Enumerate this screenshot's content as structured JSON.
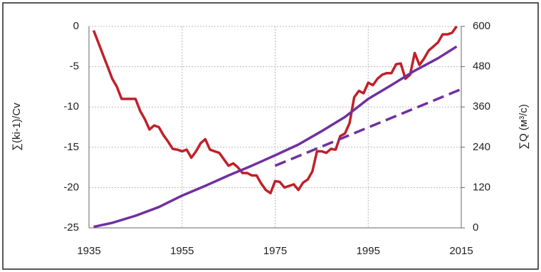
{
  "chart_data": {
    "type": "line",
    "xlim": [
      1935,
      2015
    ],
    "xticks": [
      1935,
      1955,
      1975,
      1995,
      2015
    ],
    "ylim": [
      -25,
      0
    ],
    "yticks": [
      -25,
      -20,
      -15,
      -10,
      -5,
      0
    ],
    "y2lim": [
      0,
      600
    ],
    "y2ticks": [
      0,
      120,
      240,
      360,
      480,
      600
    ],
    "ylabel": "∑(ki-1)/Cv",
    "y2label": "∑Q (м³/c)",
    "grid": true,
    "series": [
      {
        "color": "#c0202a",
        "dashed": false,
        "x": [
          1936,
          1937,
          1938,
          1939,
          1940,
          1941,
          1942,
          1943,
          1944,
          1945,
          1946,
          1947,
          1948,
          1949,
          1950,
          1951,
          1952,
          1953,
          1954,
          1955,
          1956,
          1957,
          1958,
          1959,
          1960,
          1961,
          1962,
          1963,
          1964,
          1965,
          1966,
          1967,
          1968,
          1969,
          1970,
          1971,
          1972,
          1973,
          1974,
          1975,
          1976,
          1977,
          1978,
          1979,
          1980,
          1981,
          1982,
          1983,
          1984,
          1985,
          1986,
          1987,
          1988,
          1989,
          1990,
          1991,
          1992,
          1993,
          1994,
          1995,
          1996,
          1997,
          1998,
          1999,
          2000,
          2001,
          2002,
          2003,
          2004,
          2005,
          2006,
          2007,
          2008,
          2009,
          2010,
          2011,
          2012,
          2013,
          2014
        ],
        "values": [
          -0.5,
          -2,
          -3.5,
          -5,
          -6.5,
          -7.5,
          -9,
          -9,
          -9,
          -9,
          -10.5,
          -11.5,
          -12.8,
          -12.3,
          -12.5,
          -13.5,
          -14.3,
          -15.2,
          -15.3,
          -15.5,
          -15.3,
          -16.3,
          -15.5,
          -14.5,
          -14,
          -15.3,
          -15.5,
          -15.7,
          -16.5,
          -17.3,
          -17,
          -17.5,
          -18.2,
          -18.2,
          -18.5,
          -18.5,
          -19.5,
          -20.3,
          -20.7,
          -19.2,
          -19.3,
          -20,
          -19.8,
          -19.6,
          -20.3,
          -19.4,
          -19,
          -18,
          -15.5,
          -15.5,
          -15.7,
          -15.2,
          -15.3,
          -13.6,
          -13.3,
          -12,
          -8.8,
          -8,
          -8.3,
          -7,
          -7.3,
          -6.5,
          -6,
          -5.8,
          -5.8,
          -4.7,
          -4.6,
          -6.5,
          -6,
          -3.3,
          -4.8,
          -4,
          -3,
          -2.5,
          -2,
          -1,
          -1,
          -0.8,
          0
        ]
      },
      {
        "color": "#7030a0",
        "dashed": false,
        "axis": "y2",
        "x": [
          1936,
          1940,
          1945,
          1950,
          1955,
          1960,
          1965,
          1970,
          1975,
          1980,
          1985,
          1990,
          1995,
          2000,
          2005,
          2010,
          2014
        ],
        "values": [
          3,
          15,
          36,
          62,
          96,
          125,
          156,
          185,
          216,
          248,
          288,
          330,
          384,
          425,
          468,
          505,
          540
        ]
      },
      {
        "color": "#7030a0",
        "dashed": true,
        "axis": "y2",
        "x": [
          1975,
          2015
        ],
        "values": [
          185,
          413
        ]
      }
    ]
  }
}
